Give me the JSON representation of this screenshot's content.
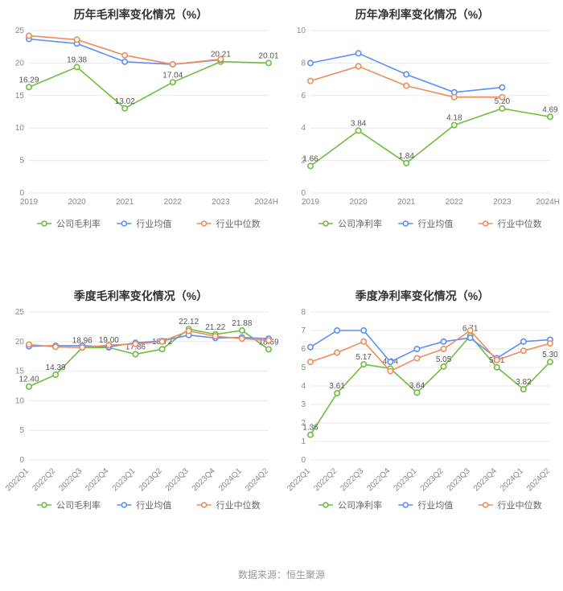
{
  "footer": "数据来源：恒生聚源",
  "colors": {
    "company": "#6cbf3f",
    "mean": "#5b8ff9",
    "median": "#f08c5a",
    "grid": "#e9e9e9",
    "axis": "#888888",
    "title": "#333333",
    "bg": "#ffffff"
  },
  "charts": [
    {
      "id": "c1",
      "title": "历年毛利率变化情况（%）",
      "type": "line",
      "x_rotate": 0,
      "categories": [
        "2019",
        "2020",
        "2021",
        "2022",
        "2023",
        "2024H1"
      ],
      "ylim": [
        0,
        25
      ],
      "ytick_step": 5,
      "legend": [
        "公司毛利率",
        "行业均值",
        "行业中位数"
      ],
      "series": [
        {
          "key": "company",
          "values": [
            16.29,
            19.38,
            13.02,
            17.04,
            20.21,
            20.01
          ],
          "labels": [
            16.29,
            19.38,
            13.02,
            17.04,
            20.21,
            20.01
          ],
          "label_show": [
            1,
            1,
            1,
            1,
            1,
            1
          ]
        },
        {
          "key": "mean",
          "values": [
            23.7,
            23.0,
            20.2,
            19.8,
            20.5,
            null
          ],
          "labels": [],
          "label_show": []
        },
        {
          "key": "median",
          "values": [
            24.2,
            23.6,
            21.2,
            19.8,
            20.6,
            null
          ],
          "labels": [],
          "label_show": []
        }
      ]
    },
    {
      "id": "c2",
      "title": "历年净利率变化情况（%）",
      "type": "line",
      "x_rotate": 0,
      "categories": [
        "2019",
        "2020",
        "2021",
        "2022",
        "2023",
        "2024H1"
      ],
      "ylim": [
        0,
        10
      ],
      "ytick_step": 2,
      "legend": [
        "公司净利率",
        "行业均值",
        "行业中位数"
      ],
      "series": [
        {
          "key": "company",
          "values": [
            1.66,
            3.84,
            1.84,
            4.18,
            5.2,
            4.69
          ],
          "labels": [
            1.66,
            3.84,
            1.84,
            4.18,
            5.2,
            4.69
          ],
          "label_show": [
            1,
            1,
            1,
            1,
            1,
            1
          ]
        },
        {
          "key": "mean",
          "values": [
            8.0,
            8.6,
            7.3,
            6.2,
            6.5,
            null
          ],
          "labels": [],
          "label_show": []
        },
        {
          "key": "median",
          "values": [
            6.9,
            7.8,
            6.6,
            5.9,
            5.9,
            null
          ],
          "labels": [],
          "label_show": []
        }
      ]
    },
    {
      "id": "c3",
      "title": "季度毛利率变化情况（%）",
      "type": "line",
      "x_rotate": -45,
      "categories": [
        "2022Q1",
        "2022Q2",
        "2022Q3",
        "2022Q4",
        "2023Q1",
        "2023Q2",
        "2023Q3",
        "2023Q4",
        "2024Q1",
        "2024Q2"
      ],
      "ylim": [
        0,
        25
      ],
      "ytick_step": 5,
      "legend": [
        "公司毛利率",
        "行业均值",
        "行业中位数"
      ],
      "series": [
        {
          "key": "company",
          "values": [
            12.4,
            14.39,
            18.96,
            19.0,
            17.86,
            18.72,
            22.12,
            21.22,
            21.88,
            18.69
          ],
          "labels": [
            12.4,
            14.39,
            18.96,
            19.0,
            17.86,
            18.72,
            22.12,
            21.22,
            21.88,
            18.69
          ],
          "label_show": [
            1,
            1,
            1,
            1,
            1,
            1,
            1,
            1,
            1,
            1
          ]
        },
        {
          "key": "mean",
          "values": [
            19.2,
            19.3,
            19.3,
            19.1,
            19.8,
            20.1,
            21.1,
            20.6,
            20.7,
            20.5
          ],
          "labels": [],
          "label_show": []
        },
        {
          "key": "median",
          "values": [
            19.5,
            19.1,
            19.0,
            19.4,
            19.6,
            20.0,
            21.8,
            20.9,
            20.5,
            20.2
          ],
          "labels": [],
          "label_show": []
        }
      ]
    },
    {
      "id": "c4",
      "title": "季度净利率变化情况（%）",
      "type": "line",
      "x_rotate": -45,
      "categories": [
        "2022Q1",
        "2022Q2",
        "2022Q3",
        "2022Q4",
        "2023Q1",
        "2023Q2",
        "2023Q3",
        "2023Q4",
        "2024Q1",
        "2024Q2"
      ],
      "ylim": [
        0,
        8
      ],
      "ytick_step": 1,
      "legend": [
        "公司净利率",
        "行业均值",
        "行业中位数"
      ],
      "series": [
        {
          "key": "company",
          "values": [
            1.36,
            3.61,
            5.17,
            4.94,
            3.64,
            5.05,
            6.71,
            5.01,
            3.82,
            5.3
          ],
          "labels": [
            1.36,
            3.61,
            5.17,
            4.94,
            3.64,
            5.05,
            6.71,
            5.01,
            3.82,
            5.3
          ],
          "label_show": [
            1,
            1,
            1,
            1,
            1,
            1,
            1,
            1,
            1,
            1
          ]
        },
        {
          "key": "mean",
          "values": [
            6.1,
            7.0,
            7.0,
            5.3,
            6.0,
            6.4,
            6.6,
            5.5,
            6.4,
            6.5
          ],
          "labels": [],
          "label_show": []
        },
        {
          "key": "median",
          "values": [
            5.3,
            5.8,
            6.4,
            4.8,
            5.5,
            6.0,
            7.0,
            5.4,
            5.9,
            6.3
          ],
          "labels": [],
          "label_show": []
        }
      ]
    }
  ]
}
